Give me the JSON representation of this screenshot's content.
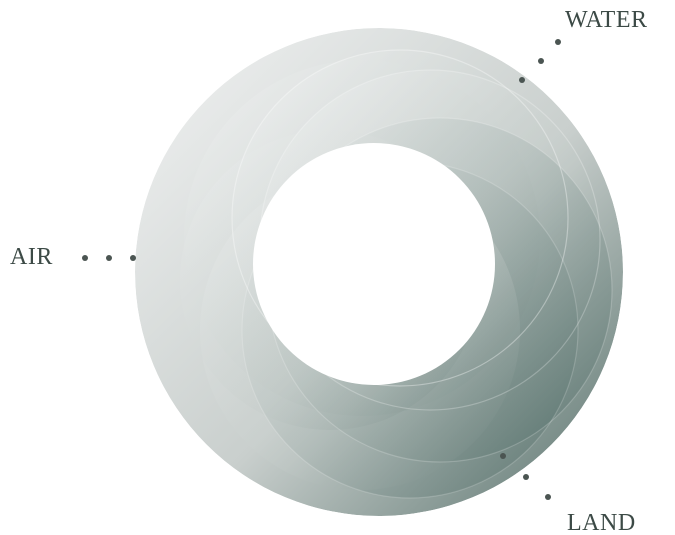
{
  "labels": {
    "water": "WATER",
    "air": "AIR",
    "land": "LAND"
  },
  "colors": {
    "text": "#3c4a46",
    "dot": "#4b5552",
    "ring_light": "#eef0ef",
    "ring_mid": "#b9c1be",
    "ring_dark": "#4f6660",
    "background": "#ffffff"
  }
}
